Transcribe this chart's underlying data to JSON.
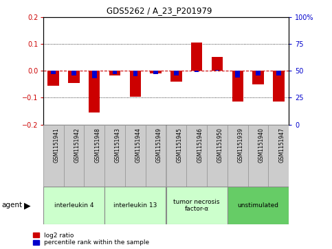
{
  "title": "GDS5262 / A_23_P201979",
  "samples": [
    "GSM1151941",
    "GSM1151942",
    "GSM1151948",
    "GSM1151943",
    "GSM1151944",
    "GSM1151949",
    "GSM1151945",
    "GSM1151946",
    "GSM1151950",
    "GSM1151939",
    "GSM1151940",
    "GSM1151947"
  ],
  "log2_ratio": [
    -0.055,
    -0.045,
    -0.155,
    -0.018,
    -0.095,
    -0.01,
    -0.04,
    0.105,
    0.053,
    -0.115,
    -0.05,
    -0.115
  ],
  "percentile_rank": [
    47,
    46,
    43,
    47,
    45,
    47,
    46,
    49,
    51,
    44,
    46,
    46
  ],
  "groups": [
    {
      "label": "interleukin 4",
      "start": 0,
      "end": 3,
      "color": "#ccffcc"
    },
    {
      "label": "interleukin 13",
      "start": 3,
      "end": 6,
      "color": "#ccffcc"
    },
    {
      "label": "tumor necrosis\nfactor-α",
      "start": 6,
      "end": 9,
      "color": "#ccffcc"
    },
    {
      "label": "unstimulated",
      "start": 9,
      "end": 12,
      "color": "#66cc66"
    }
  ],
  "ylim": [
    -0.2,
    0.2
  ],
  "yticks_left": [
    -0.2,
    -0.1,
    0.0,
    0.1,
    0.2
  ],
  "yticks_right": [
    0,
    25,
    50,
    75,
    100
  ],
  "bar_width": 0.55,
  "red_color": "#cc0000",
  "blue_color": "#0000cc",
  "zero_line_color": "#cc0000",
  "grid_color": "#000000",
  "sample_bg_color": "#cccccc",
  "sample_border_color": "#999999"
}
